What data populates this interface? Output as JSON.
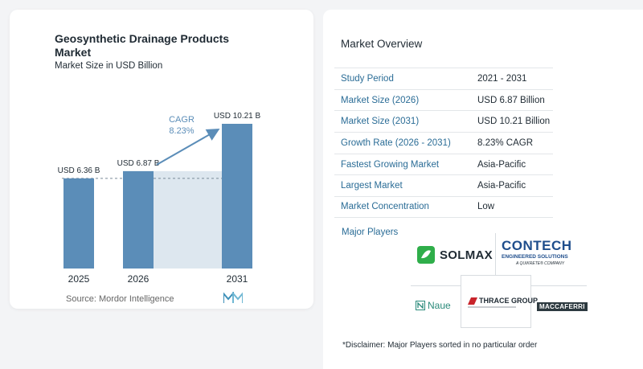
{
  "chart": {
    "title": "Geosynthetic Drainage Products Market",
    "subtitle": "Market Size in USD Billion",
    "source": "Source:  Mordor Intelligence",
    "cagr_label": "CAGR",
    "cagr_value": "8.23%"
  },
  "chart_data": {
    "type": "bar",
    "categories": [
      "2025",
      "2026",
      "2031"
    ],
    "values": [
      6.36,
      6.87,
      10.21
    ],
    "value_labels": [
      "USD 6.36 B",
      "USD 6.87 B",
      "USD 10.21 B"
    ],
    "title": "Geosynthetic Drainage Products Market",
    "ylabel": "Market Size in USD Billion",
    "ylim": [
      0,
      10.21
    ],
    "grid": false,
    "colors": {
      "bar": "#5b8db8",
      "shade": "#dde7ef",
      "arrow": "#5b8db8"
    }
  },
  "overview": {
    "title": "Market Overview",
    "rows": [
      {
        "label": "Study Period",
        "value": "2021 - 2031"
      },
      {
        "label": "Market Size (2026)",
        "value": "USD 6.87 Billion"
      },
      {
        "label": "Market Size (2031)",
        "value": "USD 10.21 Billion"
      },
      {
        "label": "Growth Rate (2026 - 2031)",
        "value": "8.23% CAGR"
      },
      {
        "label": "Fastest Growing Market",
        "value": "Asia-Pacific"
      },
      {
        "label": "Largest Market",
        "value": "Asia-Pacific"
      },
      {
        "label": "Market Concentration",
        "value": "Low"
      }
    ]
  },
  "players": {
    "label": "Major Players",
    "logos": {
      "solmax": "SOLMAX",
      "contech": "CONTECH",
      "contech_sub": "ENGINEERED SOLUTIONS",
      "contech_sub2": "A QUIKRETE® COMPANY",
      "naue": "Naue",
      "thrace": "THRACE GROUP",
      "maccaferri": "MACCAFERRI"
    }
  },
  "disclaimer": "*Disclaimer: Major Players sorted in no particular order"
}
